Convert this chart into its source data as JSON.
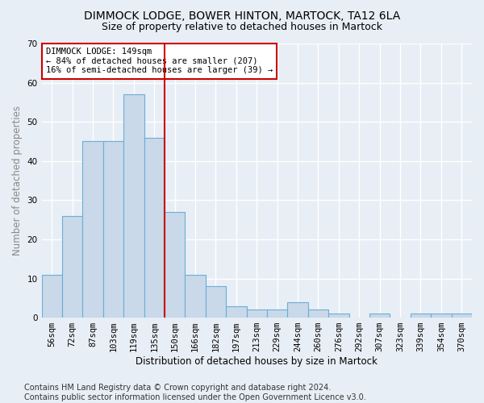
{
  "title": "DIMMOCK LODGE, BOWER HINTON, MARTOCK, TA12 6LA",
  "subtitle": "Size of property relative to detached houses in Martock",
  "xlabel": "Distribution of detached houses by size in Martock",
  "ylabel": "Number of detached properties",
  "bar_labels": [
    "56sqm",
    "72sqm",
    "87sqm",
    "103sqm",
    "119sqm",
    "135sqm",
    "150sqm",
    "166sqm",
    "182sqm",
    "197sqm",
    "213sqm",
    "229sqm",
    "244sqm",
    "260sqm",
    "276sqm",
    "292sqm",
    "307sqm",
    "323sqm",
    "339sqm",
    "354sqm",
    "370sqm"
  ],
  "bar_values": [
    11,
    26,
    45,
    45,
    57,
    46,
    27,
    11,
    8,
    3,
    2,
    2,
    4,
    2,
    1,
    0,
    1,
    0,
    1,
    1,
    1
  ],
  "bar_color": "#c9d9ea",
  "bar_edge_color": "#6aaed6",
  "ylim": [
    0,
    70
  ],
  "yticks": [
    0,
    10,
    20,
    30,
    40,
    50,
    60,
    70
  ],
  "vline_x_index": 6,
  "vline_color": "#cc0000",
  "annotation_line1": "DIMMOCK LODGE: 149sqm",
  "annotation_line2": "← 84% of detached houses are smaller (207)",
  "annotation_line3": "16% of semi-detached houses are larger (39) →",
  "annotation_box_color": "#ffffff",
  "annotation_box_edge": "#cc0000",
  "footer_text": "Contains HM Land Registry data © Crown copyright and database right 2024.\nContains public sector information licensed under the Open Government Licence v3.0.",
  "bg_color": "#e8eef5",
  "plot_bg_color": "#e8eef5",
  "grid_color": "#ffffff",
  "title_fontsize": 10,
  "subtitle_fontsize": 9,
  "axis_label_fontsize": 8.5,
  "tick_fontsize": 7.5,
  "ylabel_color": "#888888",
  "footer_fontsize": 7
}
